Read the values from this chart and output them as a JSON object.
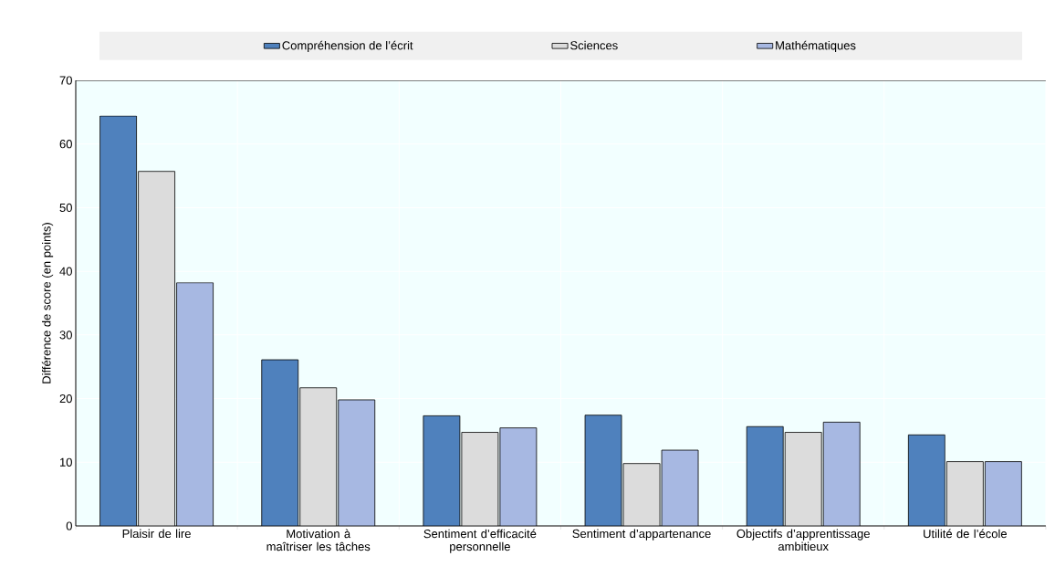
{
  "chart_data": {
    "type": "bar",
    "ylabel": "Différence de score (en points)",
    "categories": [
      "Plaisir de lire",
      "Motivation à maîtriser les tâches",
      "Sentiment d’efficacité personnelle",
      "Sentiment d’appartenance",
      "Objectifs d’apprentissage ambitieux",
      "Utilité de l’école"
    ],
    "series": [
      {
        "name": "Compréhension de l’écrit",
        "color": "#4f81bd",
        "values": [
          64.4,
          26.1,
          17.3,
          17.4,
          15.6,
          14.3
        ]
      },
      {
        "name": "Sciences",
        "color": "#dcdcdc",
        "values": [
          55.7,
          21.7,
          14.7,
          9.8,
          14.7,
          10.1
        ]
      },
      {
        "name": "Mathématiques",
        "color": "#a7b8e2",
        "values": [
          38.2,
          19.8,
          15.4,
          11.9,
          16.3,
          10.1
        ]
      }
    ],
    "ylim": [
      0,
      70
    ],
    "yticks": [
      0,
      10,
      20,
      30,
      40,
      50,
      60,
      70
    ],
    "grid": true,
    "legend": "top"
  }
}
